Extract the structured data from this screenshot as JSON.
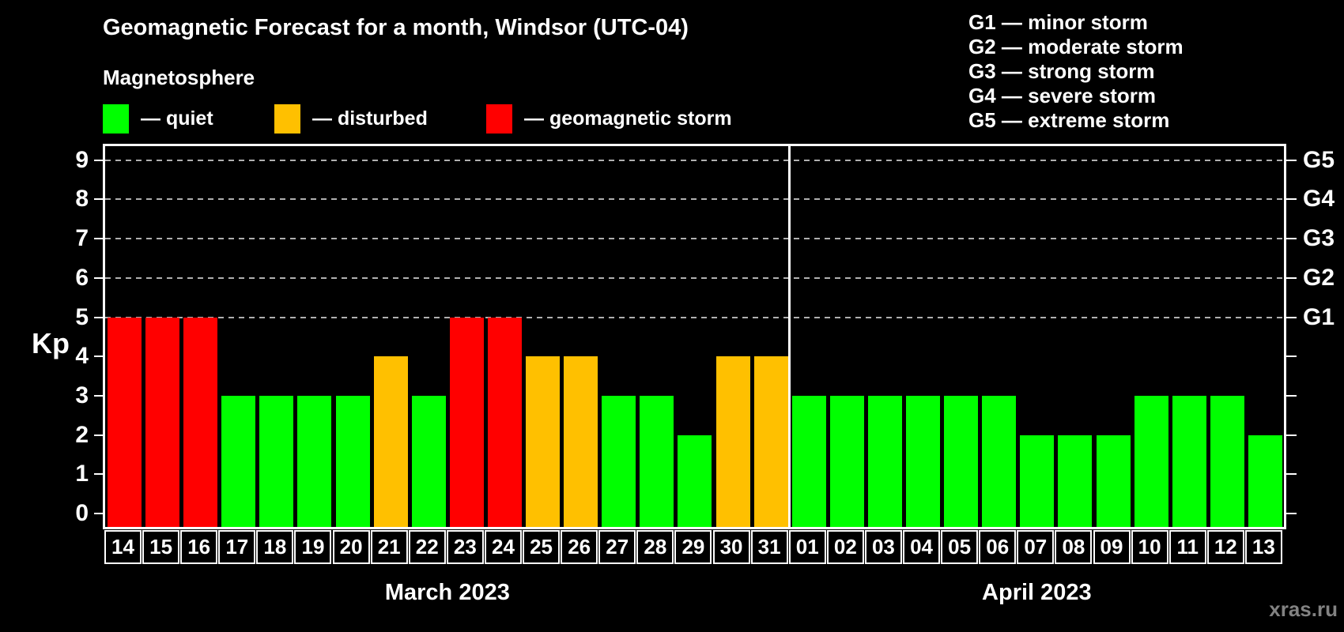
{
  "title": "Geomagnetic Forecast for a month, Windsor (UTC-04)",
  "subtitle": "Magnetosphere",
  "colors": {
    "quiet": "#00ff00",
    "disturbed": "#ffc000",
    "storm": "#ff0000",
    "grid": "#b0b0b0",
    "frame": "#ffffff",
    "watermark": "#828282"
  },
  "legend": [
    {
      "status": "quiet",
      "label": "— quiet"
    },
    {
      "status": "disturbed",
      "label": "— disturbed"
    },
    {
      "status": "storm",
      "label": "— geomagnetic storm"
    }
  ],
  "g_scale_legend": [
    "G1 — minor storm",
    "G2 — moderate storm",
    "G3 — strong storm",
    "G4 — severe storm",
    "G5 — extreme storm"
  ],
  "y_axis": {
    "label": "Kp",
    "ticks": [
      0,
      1,
      2,
      3,
      4,
      5,
      6,
      7,
      8,
      9
    ]
  },
  "right_axis": {
    "labels": [
      {
        "value": 5,
        "label": "G1"
      },
      {
        "value": 6,
        "label": "G2"
      },
      {
        "value": 7,
        "label": "G3"
      },
      {
        "value": 8,
        "label": "G4"
      },
      {
        "value": 9,
        "label": "G5"
      }
    ]
  },
  "months": [
    {
      "label": "March 2023",
      "days": 18
    },
    {
      "label": "April 2023",
      "days": 13
    }
  ],
  "watermark": "xras.ru",
  "chart_data": {
    "type": "bar",
    "title": "Geomagnetic Forecast for a month, Windsor (UTC-04)",
    "xlabel": "",
    "ylabel": "Kp",
    "ylim": [
      0,
      9.35
    ],
    "grid": "horizontal dashed lines at Kp 5,6,7,8,9 (G1–G5)",
    "legend_position": "top-left",
    "categories": [
      "14",
      "15",
      "16",
      "17",
      "18",
      "19",
      "20",
      "21",
      "22",
      "23",
      "24",
      "25",
      "26",
      "27",
      "28",
      "29",
      "30",
      "31",
      "01",
      "02",
      "03",
      "04",
      "05",
      "06",
      "07",
      "08",
      "09",
      "10",
      "11",
      "12",
      "13"
    ],
    "values": [
      5,
      5,
      5,
      3,
      3,
      3,
      3,
      4,
      3,
      5,
      5,
      4,
      4,
      3,
      3,
      2,
      4,
      4,
      3,
      3,
      3,
      3,
      3,
      3,
      2,
      2,
      2,
      3,
      3,
      3,
      2
    ],
    "statuses": [
      "storm",
      "storm",
      "storm",
      "quiet",
      "quiet",
      "quiet",
      "quiet",
      "disturbed",
      "quiet",
      "storm",
      "storm",
      "disturbed",
      "disturbed",
      "quiet",
      "quiet",
      "quiet",
      "disturbed",
      "disturbed",
      "quiet",
      "quiet",
      "quiet",
      "quiet",
      "quiet",
      "quiet",
      "quiet",
      "quiet",
      "quiet",
      "quiet",
      "quiet",
      "quiet",
      "quiet"
    ],
    "days": [
      {
        "date": "14",
        "month": "March 2023",
        "kp": 5,
        "status": "storm"
      },
      {
        "date": "15",
        "month": "March 2023",
        "kp": 5,
        "status": "storm"
      },
      {
        "date": "16",
        "month": "March 2023",
        "kp": 5,
        "status": "storm"
      },
      {
        "date": "17",
        "month": "March 2023",
        "kp": 3,
        "status": "quiet"
      },
      {
        "date": "18",
        "month": "March 2023",
        "kp": 3,
        "status": "quiet"
      },
      {
        "date": "19",
        "month": "March 2023",
        "kp": 3,
        "status": "quiet"
      },
      {
        "date": "20",
        "month": "March 2023",
        "kp": 3,
        "status": "quiet"
      },
      {
        "date": "21",
        "month": "March 2023",
        "kp": 4,
        "status": "disturbed"
      },
      {
        "date": "22",
        "month": "March 2023",
        "kp": 3,
        "status": "quiet"
      },
      {
        "date": "23",
        "month": "March 2023",
        "kp": 5,
        "status": "storm"
      },
      {
        "date": "24",
        "month": "March 2023",
        "kp": 5,
        "status": "storm"
      },
      {
        "date": "25",
        "month": "March 2023",
        "kp": 4,
        "status": "disturbed"
      },
      {
        "date": "26",
        "month": "March 2023",
        "kp": 4,
        "status": "disturbed"
      },
      {
        "date": "27",
        "month": "March 2023",
        "kp": 3,
        "status": "quiet"
      },
      {
        "date": "28",
        "month": "March 2023",
        "kp": 3,
        "status": "quiet"
      },
      {
        "date": "29",
        "month": "March 2023",
        "kp": 2,
        "status": "quiet"
      },
      {
        "date": "30",
        "month": "March 2023",
        "kp": 4,
        "status": "disturbed"
      },
      {
        "date": "31",
        "month": "March 2023",
        "kp": 4,
        "status": "disturbed"
      },
      {
        "date": "01",
        "month": "April 2023",
        "kp": 3,
        "status": "quiet"
      },
      {
        "date": "02",
        "month": "April 2023",
        "kp": 3,
        "status": "quiet"
      },
      {
        "date": "03",
        "month": "April 2023",
        "kp": 3,
        "status": "quiet"
      },
      {
        "date": "04",
        "month": "April 2023",
        "kp": 3,
        "status": "quiet"
      },
      {
        "date": "05",
        "month": "April 2023",
        "kp": 3,
        "status": "quiet"
      },
      {
        "date": "06",
        "month": "April 2023",
        "kp": 3,
        "status": "quiet"
      },
      {
        "date": "07",
        "month": "April 2023",
        "kp": 2,
        "status": "quiet"
      },
      {
        "date": "08",
        "month": "April 2023",
        "kp": 2,
        "status": "quiet"
      },
      {
        "date": "09",
        "month": "April 2023",
        "kp": 2,
        "status": "quiet"
      },
      {
        "date": "10",
        "month": "April 2023",
        "kp": 3,
        "status": "quiet"
      },
      {
        "date": "11",
        "month": "April 2023",
        "kp": 3,
        "status": "quiet"
      },
      {
        "date": "12",
        "month": "April 2023",
        "kp": 3,
        "status": "quiet"
      },
      {
        "date": "13",
        "month": "April 2023",
        "kp": 2,
        "status": "quiet"
      }
    ]
  }
}
